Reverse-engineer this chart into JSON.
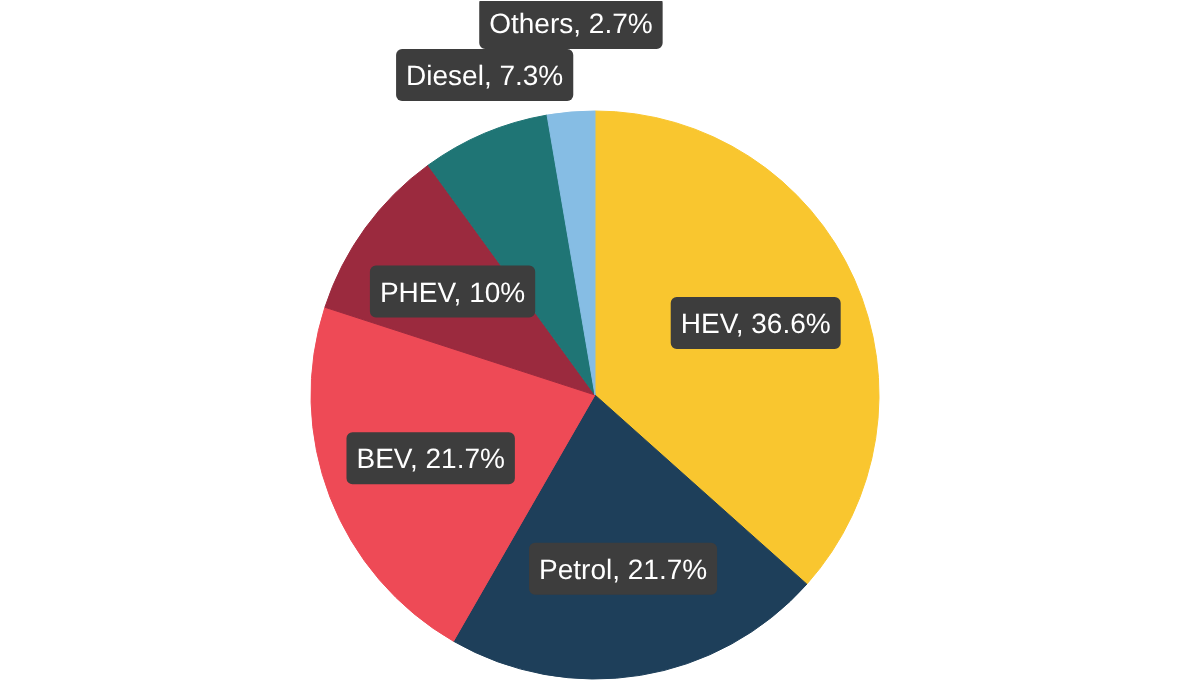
{
  "chart_data": {
    "type": "pie",
    "categories": [
      "HEV",
      "Petrol",
      "BEV",
      "PHEV",
      "Diesel",
      "Others"
    ],
    "values": [
      36.6,
      21.7,
      21.7,
      10,
      7.3,
      2.7
    ],
    "colors": [
      "#f9c62f",
      "#1e3f5a",
      "#ee4a56",
      "#9b2a3e",
      "#1f7575",
      "#86bde4"
    ],
    "value_labels": [
      "36.6%",
      "21.7%",
      "21.7%",
      "10%",
      "7.3%",
      "2.7%"
    ],
    "legend": false
  }
}
